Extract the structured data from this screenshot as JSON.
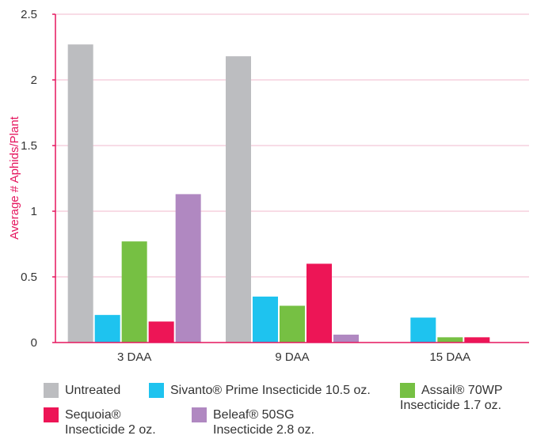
{
  "chart_data": {
    "type": "bar",
    "ylabel": "Average # Aphids/Plant",
    "xlabel": "",
    "ylim": [
      0,
      2.5
    ],
    "yticks": [
      "0",
      "0.5",
      "1",
      "1.5",
      "2",
      "2.5"
    ],
    "categories": [
      "3 DAA",
      "9 DAA",
      "15 DAA"
    ],
    "grid": true,
    "legend_position": "bottom",
    "series": [
      {
        "name": "Untreated",
        "color": "#bcbdc0",
        "values": [
          2.27,
          2.18,
          0
        ]
      },
      {
        "name": "Sivanto® Prime Insecticide 10.5 oz.",
        "color": "#1ec3ef",
        "values": [
          0.21,
          0.35,
          0.19
        ]
      },
      {
        "name": "Assail® 70WP Insecticide 1.7 oz.",
        "color": "#76c043",
        "values": [
          0.77,
          0.28,
          0.04
        ]
      },
      {
        "name": "Sequoia® Insecticide 2 oz.",
        "color": "#ed1556",
        "values": [
          0.16,
          0.6,
          0.04
        ]
      },
      {
        "name": "Beleaf® 50SG Insecticide 2.8 oz.",
        "color": "#b088c1",
        "values": [
          1.13,
          0.06,
          0
        ]
      }
    ]
  },
  "legend": {
    "items": [
      {
        "lines": [
          "Untreated"
        ],
        "color": "#bcbdc0"
      },
      {
        "lines": [
          "Sivanto® Prime Insecticide 10.5 oz."
        ],
        "color": "#1ec3ef"
      },
      {
        "lines": [
          "Assail® 70WP",
          "Insecticide 1.7 oz."
        ],
        "color": "#76c043"
      },
      {
        "lines": [
          "Sequoia®",
          "Insecticide 2 oz."
        ],
        "color": "#ed1556"
      },
      {
        "lines": [
          "Beleaf® 50SG",
          "Insecticide 2.8 oz."
        ],
        "color": "#b088c1"
      }
    ]
  },
  "colors": {
    "axis": "#e5175f",
    "grid": "#f2b8cc",
    "text": "#333333"
  }
}
